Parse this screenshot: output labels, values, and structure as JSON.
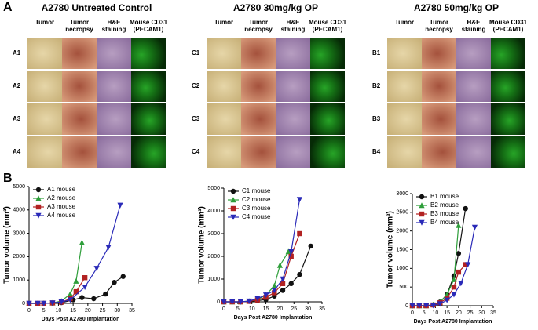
{
  "panel_labels": [
    "A",
    "B"
  ],
  "panel_a": {
    "groups": [
      {
        "title": "A2780 Untreated Control",
        "headers": [
          "Tumor",
          "Tumor necropsy",
          "H&E staining",
          "Mouse CD31 (PECAM1)"
        ],
        "rows": [
          "A1",
          "A2",
          "A3",
          "A4"
        ]
      },
      {
        "title": "A2780 30mg/kg OP",
        "headers": [
          "Tumor",
          "Tumor necropsy",
          "H&E staining",
          "Mouse CD31 (PECAM1)"
        ],
        "rows": [
          "C1",
          "C2",
          "C3",
          "C4"
        ]
      },
      {
        "title": "A2780 50mg/kg OP",
        "headers": [
          "Tumor",
          "Tumor necropsy",
          "H&E staining",
          "Mouse CD31 (PECAM1)"
        ],
        "rows": [
          "B1",
          "B2",
          "B3",
          "B4"
        ]
      }
    ]
  },
  "chart_data": [
    {
      "type": "line",
      "xlabel": "Days Post A2780 Implantation",
      "ylabel": "Tumor volume (mm³)",
      "xlim": [
        0,
        35
      ],
      "xticks": [
        0,
        5,
        10,
        15,
        20,
        25,
        30,
        35
      ],
      "ylim": [
        0,
        5000
      ],
      "yticks": [
        0,
        1000,
        2000,
        3000,
        4000,
        5000
      ],
      "series": [
        {
          "name": "A1 mouse",
          "color": "#111111",
          "marker": "circle",
          "x": [
            0,
            3,
            5,
            8,
            11,
            15,
            18,
            22,
            26,
            29,
            32
          ],
          "values": [
            0,
            0,
            0,
            10,
            30,
            150,
            250,
            200,
            400,
            900,
            1150
          ]
        },
        {
          "name": "A2 mouse",
          "color": "#2e9e3a",
          "marker": "triangle",
          "x": [
            0,
            3,
            5,
            8,
            11,
            14,
            16,
            18
          ],
          "values": [
            0,
            0,
            0,
            20,
            100,
            400,
            950,
            2600
          ]
        },
        {
          "name": "A3 mouse",
          "color": "#b22222",
          "marker": "square",
          "x": [
            0,
            3,
            5,
            8,
            11,
            14,
            16,
            19
          ],
          "values": [
            0,
            0,
            0,
            20,
            50,
            200,
            500,
            1100
          ]
        },
        {
          "name": "A4 mouse",
          "color": "#2a2ab8",
          "marker": "triangle-down",
          "x": [
            0,
            3,
            5,
            8,
            11,
            14,
            19,
            23,
            27,
            31
          ],
          "values": [
            0,
            0,
            0,
            20,
            60,
            150,
            700,
            1500,
            2400,
            4200
          ]
        }
      ]
    },
    {
      "type": "line",
      "xlabel": "Days Post A2780 Implantation",
      "ylabel": "Tumor volume (mm³)",
      "xlim": [
        0,
        35
      ],
      "xticks": [
        0,
        5,
        10,
        15,
        20,
        25,
        30,
        35
      ],
      "ylim": [
        0,
        5000
      ],
      "yticks": [
        0,
        1000,
        2000,
        3000,
        4000,
        5000
      ],
      "series": [
        {
          "name": "C1 mouse",
          "color": "#111111",
          "marker": "circle",
          "x": [
            0,
            3,
            6,
            9,
            12,
            15,
            18,
            21,
            24,
            27,
            31
          ],
          "values": [
            0,
            0,
            0,
            20,
            50,
            100,
            250,
            500,
            800,
            1200,
            2450
          ]
        },
        {
          "name": "C2 mouse",
          "color": "#2e9e3a",
          "marker": "triangle",
          "x": [
            0,
            3,
            6,
            9,
            12,
            15,
            18,
            20,
            23
          ],
          "values": [
            0,
            0,
            0,
            30,
            100,
            300,
            700,
            1600,
            2200
          ]
        },
        {
          "name": "C3 mouse",
          "color": "#b22222",
          "marker": "square",
          "x": [
            0,
            3,
            6,
            9,
            12,
            15,
            18,
            21,
            24,
            27
          ],
          "values": [
            0,
            0,
            0,
            20,
            80,
            200,
            400,
            800,
            2000,
            3000
          ]
        },
        {
          "name": "C4 mouse",
          "color": "#2a2ab8",
          "marker": "triangle-down",
          "x": [
            0,
            3,
            6,
            9,
            12,
            15,
            18,
            21,
            24,
            27
          ],
          "values": [
            0,
            0,
            0,
            30,
            150,
            300,
            500,
            1000,
            2200,
            4500
          ]
        }
      ]
    },
    {
      "type": "line",
      "xlabel": "Days Post A2780 Implantation",
      "ylabel": "Tumor volume (mm³)",
      "xlim": [
        0,
        35
      ],
      "xticks": [
        0,
        5,
        10,
        15,
        20,
        25,
        30,
        35
      ],
      "ylim": [
        0,
        3000
      ],
      "yticks": [
        0,
        500,
        1000,
        1500,
        2000,
        2500,
        3000
      ],
      "series": [
        {
          "name": "B1 mouse",
          "color": "#111111",
          "marker": "circle",
          "x": [
            0,
            3,
            6,
            9,
            12,
            15,
            18,
            20,
            23
          ],
          "values": [
            0,
            0,
            0,
            20,
            100,
            300,
            800,
            1400,
            2600
          ]
        },
        {
          "name": "B2 mouse",
          "color": "#2e9e3a",
          "marker": "triangle",
          "x": [
            0,
            3,
            6,
            9,
            12,
            15,
            18,
            20
          ],
          "values": [
            0,
            0,
            0,
            30,
            100,
            300,
            700,
            2150
          ]
        },
        {
          "name": "B3 mouse",
          "color": "#b22222",
          "marker": "square",
          "x": [
            0,
            3,
            6,
            9,
            12,
            15,
            18,
            20,
            23
          ],
          "values": [
            0,
            0,
            0,
            20,
            80,
            200,
            500,
            900,
            1100
          ]
        },
        {
          "name": "B4 mouse",
          "color": "#2a2ab8",
          "marker": "triangle-down",
          "x": [
            0,
            3,
            6,
            9,
            12,
            15,
            18,
            21,
            24,
            27
          ],
          "values": [
            0,
            0,
            0,
            10,
            50,
            150,
            300,
            600,
            1100,
            2100
          ]
        }
      ]
    }
  ]
}
